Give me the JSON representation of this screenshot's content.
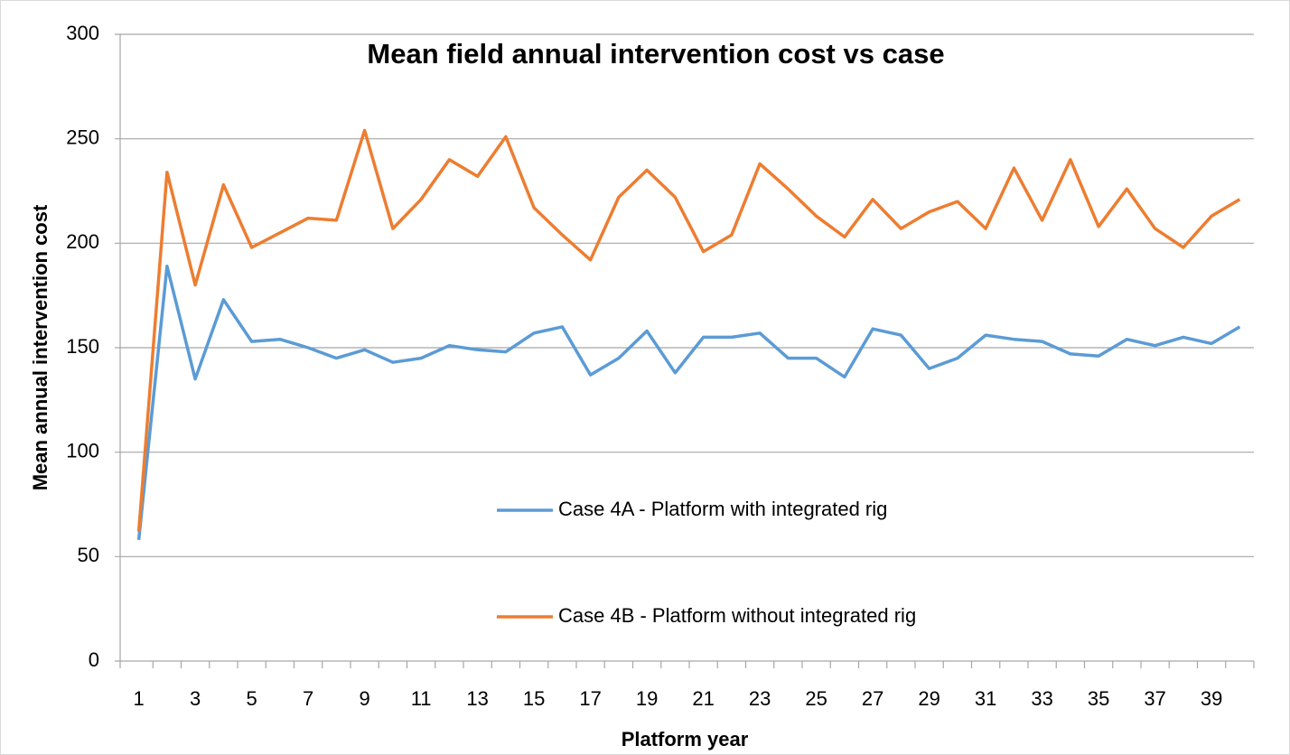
{
  "chart_data": {
    "type": "line",
    "title": "Mean field annual intervention cost vs case",
    "x_label": "Platform year",
    "y_label": "Mean annual intervention cost",
    "categories": [
      1,
      null,
      3,
      null,
      5,
      null,
      7,
      null,
      9,
      null,
      11,
      null,
      13,
      null,
      15,
      null,
      17,
      null,
      19,
      null,
      21,
      null,
      23,
      null,
      25,
      null,
      27,
      null,
      29,
      null,
      31,
      null,
      33,
      null,
      35,
      null,
      37,
      null,
      39,
      null
    ],
    "series": [
      {
        "name": "Case 4A - Platform with integrated rig",
        "color": "#5b9bd5",
        "values": [
          58,
          189,
          135,
          173,
          153,
          154,
          150,
          145,
          149,
          143,
          145,
          151,
          149,
          148,
          157,
          160,
          137,
          145,
          158,
          138,
          155,
          155,
          157,
          145,
          145,
          136,
          159,
          156,
          140,
          145,
          156,
          154,
          153,
          147,
          146,
          154,
          151,
          155,
          152,
          160
        ]
      },
      {
        "name": "Case 4B - Platform without integrated rig",
        "color": "#ed7d31",
        "values": [
          62,
          234,
          180,
          228,
          198,
          205,
          212,
          211,
          254,
          207,
          221,
          240,
          232,
          251,
          217,
          204,
          192,
          222,
          235,
          222,
          196,
          204,
          238,
          226,
          213,
          203,
          221,
          207,
          215,
          220,
          207,
          236,
          211,
          240,
          208,
          226,
          207,
          198,
          213,
          221
        ]
      }
    ],
    "ylim": [
      0,
      300
    ],
    "yticks": [
      0,
      50,
      100,
      150,
      200,
      250,
      300
    ],
    "grid": true,
    "legend": "center"
  }
}
